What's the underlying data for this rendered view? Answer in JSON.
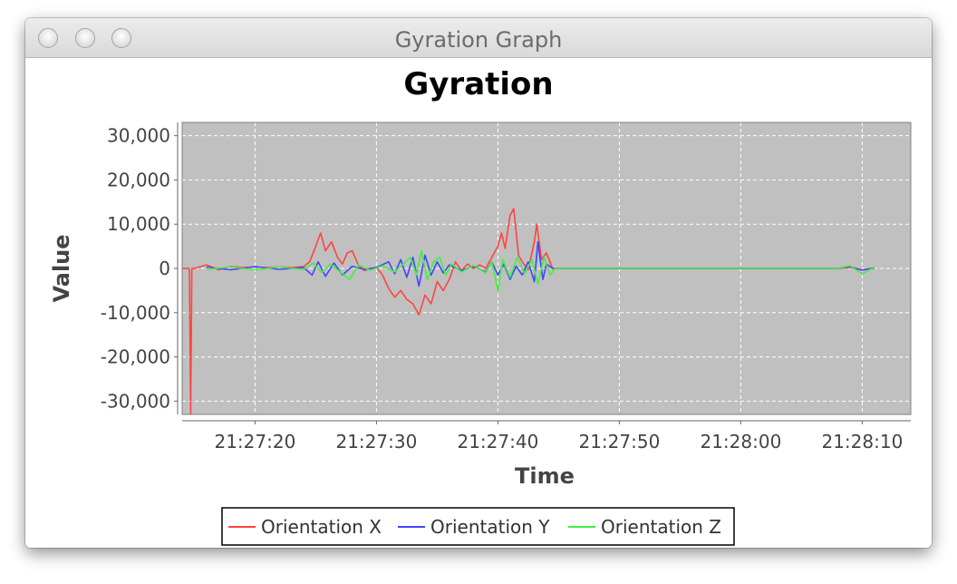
{
  "window": {
    "title": "Gyration Graph"
  },
  "chart_data": {
    "type": "line",
    "title": "Gyration",
    "xlabel": "Time",
    "ylabel": "Value",
    "x_ticks": [
      "21:27:20",
      "21:27:30",
      "21:27:40",
      "21:27:50",
      "21:28:00",
      "21:28:10"
    ],
    "y_ticks": [
      "30,000",
      "20,000",
      "10,000",
      "0",
      "-10,000",
      "-20,000",
      "-30,000"
    ],
    "xlim_seconds": [
      1634,
      1694
    ],
    "ylim": [
      -33000,
      33000
    ],
    "grid": true,
    "legend": "bottom",
    "plot_background": "#c0c0c0",
    "x_units": "seconds after 21:00:00",
    "series": [
      {
        "name": "Orientation X",
        "color": "#ff4444",
        "points": [
          [
            1634.0,
            0
          ],
          [
            1634.6,
            0
          ],
          [
            1634.7,
            -33000
          ],
          [
            1634.8,
            0
          ],
          [
            1635.0,
            0
          ],
          [
            1636.0,
            800
          ],
          [
            1637.0,
            -300
          ],
          [
            1638.0,
            400
          ],
          [
            1639.0,
            200
          ],
          [
            1640.0,
            300
          ],
          [
            1641.0,
            200
          ],
          [
            1642.0,
            300
          ],
          [
            1643.0,
            200
          ],
          [
            1644.0,
            400
          ],
          [
            1644.5,
            1500
          ],
          [
            1645.0,
            5000
          ],
          [
            1645.4,
            8000
          ],
          [
            1645.8,
            4000
          ],
          [
            1646.3,
            6000
          ],
          [
            1646.8,
            2500
          ],
          [
            1647.2,
            1000
          ],
          [
            1647.6,
            3500
          ],
          [
            1648.0,
            4000
          ],
          [
            1648.5,
            800
          ],
          [
            1649.0,
            -500
          ],
          [
            1650.0,
            300
          ],
          [
            1650.5,
            -1500
          ],
          [
            1651.0,
            -4500
          ],
          [
            1651.5,
            -6500
          ],
          [
            1652.0,
            -5000
          ],
          [
            1652.5,
            -7000
          ],
          [
            1653.0,
            -8000
          ],
          [
            1653.5,
            -10500
          ],
          [
            1654.0,
            -6000
          ],
          [
            1654.5,
            -8000
          ],
          [
            1655.0,
            -3000
          ],
          [
            1655.5,
            -5000
          ],
          [
            1656.0,
            -2500
          ],
          [
            1656.5,
            1500
          ],
          [
            1657.0,
            -500
          ],
          [
            1657.5,
            1000
          ],
          [
            1658.0,
            0
          ],
          [
            1658.5,
            800
          ],
          [
            1659.0,
            0
          ],
          [
            1659.5,
            2500
          ],
          [
            1660.0,
            5000
          ],
          [
            1660.3,
            8000
          ],
          [
            1660.6,
            4500
          ],
          [
            1661.0,
            12000
          ],
          [
            1661.3,
            13500
          ],
          [
            1661.7,
            3000
          ],
          [
            1662.0,
            1500
          ],
          [
            1662.5,
            -300
          ],
          [
            1663.0,
            6000
          ],
          [
            1663.2,
            10000
          ],
          [
            1663.6,
            2000
          ],
          [
            1664.0,
            3500
          ],
          [
            1664.5,
            0
          ],
          [
            1665.0,
            0
          ],
          [
            1670.0,
            0
          ],
          [
            1680.0,
            0
          ],
          [
            1688.0,
            0
          ],
          [
            1689.0,
            200
          ],
          [
            1690.0,
            -300
          ],
          [
            1691.0,
            0
          ]
        ]
      },
      {
        "name": "Orientation Y",
        "color": "#4444ff",
        "points": [
          [
            1636.0,
            300
          ],
          [
            1638.0,
            -300
          ],
          [
            1640.0,
            400
          ],
          [
            1642.0,
            -200
          ],
          [
            1644.0,
            200
          ],
          [
            1644.7,
            -1500
          ],
          [
            1645.2,
            1500
          ],
          [
            1645.8,
            -1800
          ],
          [
            1646.5,
            1200
          ],
          [
            1647.2,
            -1500
          ],
          [
            1648.0,
            500
          ],
          [
            1649.0,
            -200
          ],
          [
            1650.0,
            200
          ],
          [
            1651.0,
            1500
          ],
          [
            1651.5,
            -1200
          ],
          [
            1652.0,
            2000
          ],
          [
            1652.5,
            -2000
          ],
          [
            1653.0,
            2500
          ],
          [
            1653.5,
            -4000
          ],
          [
            1654.0,
            3000
          ],
          [
            1654.5,
            -1500
          ],
          [
            1655.0,
            1500
          ],
          [
            1655.5,
            -1000
          ],
          [
            1656.0,
            800
          ],
          [
            1657.0,
            -500
          ],
          [
            1658.0,
            500
          ],
          [
            1659.0,
            -800
          ],
          [
            1659.5,
            1500
          ],
          [
            1660.0,
            -1500
          ],
          [
            1660.5,
            1000
          ],
          [
            1661.0,
            -2500
          ],
          [
            1661.5,
            500
          ],
          [
            1662.0,
            -1500
          ],
          [
            1662.5,
            1500
          ],
          [
            1663.0,
            -3000
          ],
          [
            1663.3,
            6000
          ],
          [
            1663.7,
            -2500
          ],
          [
            1664.0,
            1000
          ],
          [
            1664.5,
            0
          ],
          [
            1688.0,
            0
          ],
          [
            1689.0,
            400
          ],
          [
            1690.0,
            -400
          ],
          [
            1691.0,
            200
          ]
        ]
      },
      {
        "name": "Orientation Z",
        "color": "#44ee44",
        "points": [
          [
            1636.0,
            -200
          ],
          [
            1638.0,
            300
          ],
          [
            1640.0,
            -300
          ],
          [
            1642.0,
            300
          ],
          [
            1644.0,
            -200
          ],
          [
            1644.8,
            1200
          ],
          [
            1645.5,
            -900
          ],
          [
            1646.2,
            1000
          ],
          [
            1647.0,
            -800
          ],
          [
            1647.8,
            -2500
          ],
          [
            1648.5,
            800
          ],
          [
            1649.5,
            -400
          ],
          [
            1650.5,
            600
          ],
          [
            1651.5,
            -800
          ],
          [
            1652.0,
            500
          ],
          [
            1652.8,
            2500
          ],
          [
            1653.3,
            -1500
          ],
          [
            1653.7,
            4000
          ],
          [
            1654.2,
            -2500
          ],
          [
            1654.7,
            1500
          ],
          [
            1655.2,
            2500
          ],
          [
            1655.7,
            -1500
          ],
          [
            1656.2,
            1000
          ],
          [
            1657.0,
            -800
          ],
          [
            1658.0,
            700
          ],
          [
            1659.0,
            -1000
          ],
          [
            1659.5,
            1500
          ],
          [
            1660.0,
            -5000
          ],
          [
            1660.4,
            2000
          ],
          [
            1661.0,
            -2000
          ],
          [
            1661.6,
            2500
          ],
          [
            1662.2,
            -1200
          ],
          [
            1662.8,
            2000
          ],
          [
            1663.3,
            -3500
          ],
          [
            1663.8,
            2500
          ],
          [
            1664.3,
            -1500
          ],
          [
            1664.7,
            0
          ],
          [
            1688.0,
            0
          ],
          [
            1689.0,
            600
          ],
          [
            1690.0,
            -1200
          ],
          [
            1691.0,
            300
          ]
        ]
      }
    ]
  }
}
